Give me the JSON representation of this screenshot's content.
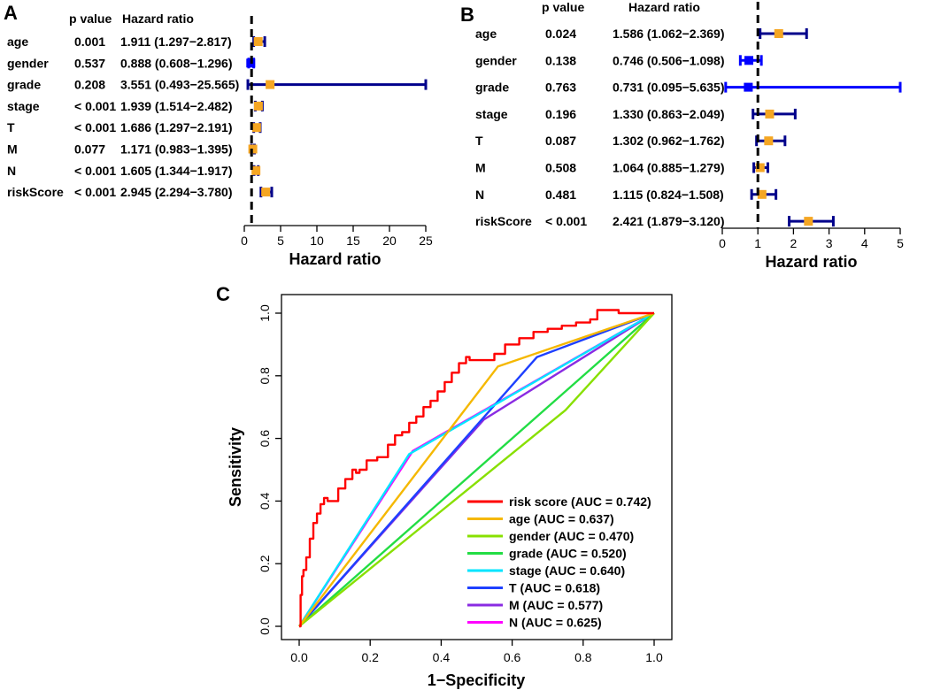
{
  "chart_data": [
    {
      "panel": "A",
      "type": "forest",
      "headers": {
        "pvalue": "p value",
        "hr": "Hazard ratio"
      },
      "xlabel": "Hazard ratio",
      "xticks": [
        0,
        5,
        10,
        15,
        20,
        25
      ],
      "xlim": [
        0,
        25
      ],
      "reference": 1,
      "colors": {
        "ci_line": "#00008B",
        "ci_above": "#00008B",
        "ci_below": "#0000FF",
        "point_above": "#F5A623",
        "point_below": "#0000FF"
      },
      "rows": [
        {
          "label": "age",
          "p": "0.001",
          "hr_text": "1.911 (1.297−2.817)",
          "hr": 1.911,
          "lo": 1.297,
          "hi": 2.817
        },
        {
          "label": "gender",
          "p": "0.537",
          "hr_text": "0.888 (0.608−1.296)",
          "hr": 0.888,
          "lo": 0.608,
          "hi": 1.296
        },
        {
          "label": "grade",
          "p": "0.208",
          "hr_text": "3.551 (0.493−25.565)",
          "hr": 3.551,
          "lo": 0.493,
          "hi": 25.565
        },
        {
          "label": "stage",
          "p": "< 0.001",
          "hr_text": "1.939 (1.514−2.482)",
          "hr": 1.939,
          "lo": 1.514,
          "hi": 2.482
        },
        {
          "label": "T",
          "p": "< 0.001",
          "hr_text": "1.686 (1.297−2.191)",
          "hr": 1.686,
          "lo": 1.297,
          "hi": 2.191
        },
        {
          "label": "M",
          "p": "0.077",
          "hr_text": "1.171 (0.983−1.395)",
          "hr": 1.171,
          "lo": 0.983,
          "hi": 1.395
        },
        {
          "label": "N",
          "p": "< 0.001",
          "hr_text": "1.605 (1.344−1.917)",
          "hr": 1.605,
          "lo": 1.344,
          "hi": 1.917
        },
        {
          "label": "riskScore",
          "p": "< 0.001",
          "hr_text": "2.945 (2.294−3.780)",
          "hr": 2.945,
          "lo": 2.294,
          "hi": 3.78
        }
      ]
    },
    {
      "panel": "B",
      "type": "forest",
      "headers": {
        "pvalue": "p value",
        "hr": "Hazard ratio"
      },
      "xlabel": "Hazard ratio",
      "xticks": [
        0,
        1,
        2,
        3,
        4,
        5
      ],
      "xlim": [
        0,
        5
      ],
      "reference": 1,
      "rows": [
        {
          "label": "age",
          "p": "0.024",
          "hr_text": "1.586 (1.062−2.369)",
          "hr": 1.586,
          "lo": 1.062,
          "hi": 2.369
        },
        {
          "label": "gender",
          "p": "0.138",
          "hr_text": "0.746 (0.506−1.098)",
          "hr": 0.746,
          "lo": 0.506,
          "hi": 1.098
        },
        {
          "label": "grade",
          "p": "0.763",
          "hr_text": "0.731 (0.095−5.635)",
          "hr": 0.731,
          "lo": 0.095,
          "hi": 5.635
        },
        {
          "label": "stage",
          "p": "0.196",
          "hr_text": "1.330 (0.863−2.049)",
          "hr": 1.33,
          "lo": 0.863,
          "hi": 2.049
        },
        {
          "label": "T",
          "p": "0.087",
          "hr_text": "1.302 (0.962−1.762)",
          "hr": 1.302,
          "lo": 0.962,
          "hi": 1.762
        },
        {
          "label": "M",
          "p": "0.508",
          "hr_text": "1.064 (0.885−1.279)",
          "hr": 1.064,
          "lo": 0.885,
          "hi": 1.279
        },
        {
          "label": "N",
          "p": "0.481",
          "hr_text": "1.115 (0.824−1.508)",
          "hr": 1.115,
          "lo": 0.824,
          "hi": 1.508
        },
        {
          "label": "riskScore",
          "p": "< 0.001",
          "hr_text": "2.421 (1.879−3.120)",
          "hr": 2.421,
          "lo": 1.879,
          "hi": 3.12
        }
      ]
    },
    {
      "panel": "C",
      "type": "line",
      "xlabel": "1−Specificity",
      "ylabel": "Sensitivity",
      "xlim": [
        0,
        1
      ],
      "ylim": [
        0,
        1
      ],
      "xticks": [
        "0.0",
        "0.2",
        "0.4",
        "0.6",
        "0.8",
        "1.0"
      ],
      "yticks": [
        "0.0",
        "0.2",
        "0.4",
        "0.6",
        "0.8",
        "1.0"
      ],
      "legend_position": "bottom-right",
      "series": [
        {
          "name": "N (AUC = 0.625)",
          "color": "#FF00FF",
          "x": [
            0,
            0.32,
            1
          ],
          "y": [
            0,
            0.56,
            1
          ]
        },
        {
          "name": "M (AUC = 0.577)",
          "color": "#8A2BE2",
          "x": [
            0,
            0.52,
            1
          ],
          "y": [
            0,
            0.66,
            1
          ]
        },
        {
          "name": "T (AUC = 0.618)",
          "color": "#1E40FF",
          "x": [
            0,
            0.67,
            1
          ],
          "y": [
            0,
            0.86,
            1
          ]
        },
        {
          "name": "stage (AUC = 0.640)",
          "color": "#00E5FF",
          "x": [
            0,
            0.31,
            1
          ],
          "y": [
            0,
            0.55,
            1
          ]
        },
        {
          "name": "grade (AUC = 0.520)",
          "color": "#22DD44",
          "x": [
            0,
            1
          ],
          "y": [
            0,
            1
          ]
        },
        {
          "name": "gender (AUC = 0.470)",
          "color": "#88E000",
          "x": [
            0,
            0.75,
            1
          ],
          "y": [
            0,
            0.69,
            1
          ]
        },
        {
          "name": "age (AUC = 0.637)",
          "color": "#F5B800",
          "x": [
            0,
            0.56,
            1
          ],
          "y": [
            0,
            0.83,
            1
          ]
        },
        {
          "name": "risk score (AUC = 0.742)",
          "color": "#FF0000",
          "x": [
            0,
            0.004,
            0.004,
            0.008,
            0.008,
            0.012,
            0.012,
            0.02,
            0.02,
            0.03,
            0.03,
            0.04,
            0.04,
            0.05,
            0.05,
            0.06,
            0.06,
            0.07,
            0.07,
            0.08,
            0.08,
            0.11,
            0.11,
            0.13,
            0.13,
            0.15,
            0.15,
            0.16,
            0.16,
            0.17,
            0.17,
            0.19,
            0.19,
            0.22,
            0.22,
            0.25,
            0.25,
            0.27,
            0.27,
            0.29,
            0.29,
            0.31,
            0.31,
            0.33,
            0.33,
            0.35,
            0.35,
            0.37,
            0.37,
            0.39,
            0.39,
            0.41,
            0.41,
            0.43,
            0.43,
            0.45,
            0.45,
            0.47,
            0.47,
            0.48,
            0.48,
            0.5,
            0.5,
            0.55,
            0.55,
            0.58,
            0.58,
            0.62,
            0.62,
            0.66,
            0.66,
            0.7,
            0.7,
            0.74,
            0.74,
            0.78,
            0.78,
            0.82,
            0.82,
            0.84,
            0.84,
            0.9,
            0.9,
            1.0
          ],
          "y": [
            0,
            0,
            0.1,
            0.1,
            0.16,
            0.16,
            0.18,
            0.18,
            0.22,
            0.22,
            0.28,
            0.28,
            0.33,
            0.33,
            0.36,
            0.36,
            0.39,
            0.39,
            0.41,
            0.41,
            0.4,
            0.4,
            0.44,
            0.44,
            0.47,
            0.47,
            0.5,
            0.5,
            0.49,
            0.49,
            0.5,
            0.5,
            0.53,
            0.53,
            0.54,
            0.54,
            0.58,
            0.58,
            0.61,
            0.61,
            0.62,
            0.62,
            0.65,
            0.65,
            0.67,
            0.67,
            0.7,
            0.7,
            0.72,
            0.72,
            0.75,
            0.75,
            0.78,
            0.78,
            0.81,
            0.81,
            0.84,
            0.84,
            0.86,
            0.86,
            0.85,
            0.85,
            0.85,
            0.85,
            0.87,
            0.87,
            0.9,
            0.9,
            0.92,
            0.92,
            0.94,
            0.94,
            0.95,
            0.95,
            0.96,
            0.96,
            0.97,
            0.97,
            0.98,
            0.98,
            1.01,
            1.01,
            1.0,
            1.0
          ]
        }
      ],
      "reference_line": {
        "x": [
          0,
          1
        ],
        "y": [
          0,
          1
        ],
        "color": "#000000"
      }
    }
  ]
}
